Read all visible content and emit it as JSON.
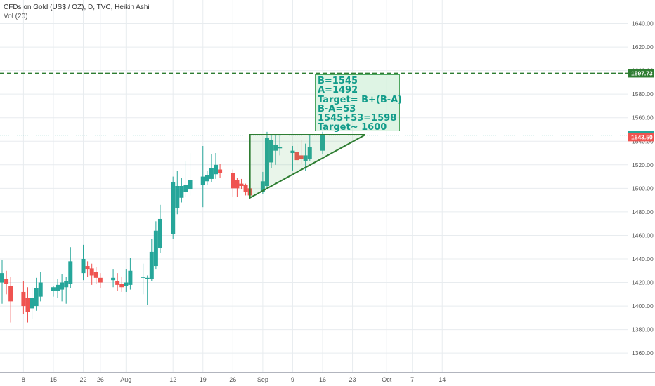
{
  "header": {
    "title": "CFDs on Gold (US$ / OZ), D, TVC, Heikin Ashi",
    "volume_label": "Vol (20)"
  },
  "annotation": {
    "lines": [
      "B=1545",
      "A=1492",
      "Target= B+(B-A)",
      "B-A=53",
      "1545+53=1598",
      "Target~ 1600"
    ]
  },
  "colors": {
    "up": "#26a69a",
    "down": "#ef5350",
    "triangle": "#2e7d32",
    "target_line": "#2e7d32",
    "last_price": "#26a69a",
    "prev_close": "#ef5350",
    "grid": "#e8ecef",
    "axis_text": "#555555"
  },
  "chart_data": {
    "type": "candlestick",
    "chart_style": "Heikin Ashi",
    "series_name": "CFDs on Gold (US$ / OZ)",
    "interval": "D",
    "y_axis": {
      "position": "right",
      "range": [
        1344,
        1660
      ],
      "ticks": [
        1360,
        1380,
        1400,
        1420,
        1440,
        1460,
        1480,
        1500,
        1520,
        1540,
        1560,
        1580,
        1600,
        1620,
        1640
      ]
    },
    "x_axis": {
      "range": [
        "2019-07-03",
        "2019-10-15"
      ],
      "ticks": [
        {
          "label": "8",
          "date": "2019-07-08"
        },
        {
          "label": "15",
          "date": "2019-07-15"
        },
        {
          "label": "22",
          "date": "2019-07-22"
        },
        {
          "label": "26",
          "date": "2019-07-26"
        },
        {
          "label": "Aug",
          "date": "2019-08-01"
        },
        {
          "label": "12",
          "date": "2019-08-12"
        },
        {
          "label": "19",
          "date": "2019-08-19"
        },
        {
          "label": "26",
          "date": "2019-08-26"
        },
        {
          "label": "Sep",
          "date": "2019-09-02"
        },
        {
          "label": "9",
          "date": "2019-09-09"
        },
        {
          "label": "16",
          "date": "2019-09-16"
        },
        {
          "label": "23",
          "date": "2019-09-23"
        },
        {
          "label": "Oct",
          "date": "2019-10-01"
        },
        {
          "label": "7",
          "date": "2019-10-07"
        },
        {
          "label": "14",
          "date": "2019-10-14"
        }
      ]
    },
    "candles": [
      {
        "date": "2019-07-03",
        "open": 1420,
        "high": 1439,
        "low": 1402,
        "close": 1428
      },
      {
        "date": "2019-07-04",
        "open": 1423,
        "high": 1430,
        "low": 1410,
        "close": 1419
      },
      {
        "date": "2019-07-05",
        "open": 1417,
        "high": 1425,
        "low": 1386,
        "close": 1404
      },
      {
        "date": "2019-07-08",
        "open": 1412,
        "high": 1421,
        "low": 1393,
        "close": 1400
      },
      {
        "date": "2019-07-09",
        "open": 1407,
        "high": 1416,
        "low": 1386,
        "close": 1395
      },
      {
        "date": "2019-07-10",
        "open": 1398,
        "high": 1416,
        "low": 1389,
        "close": 1407
      },
      {
        "date": "2019-07-11",
        "open": 1400,
        "high": 1424,
        "low": 1396,
        "close": 1415
      },
      {
        "date": "2019-07-12",
        "open": 1408,
        "high": 1429,
        "low": 1404,
        "close": 1420
      },
      {
        "date": "2019-07-15",
        "open": 1413,
        "high": 1417,
        "low": 1408,
        "close": 1416
      },
      {
        "date": "2019-07-16",
        "open": 1413,
        "high": 1423,
        "low": 1407,
        "close": 1418
      },
      {
        "date": "2019-07-17",
        "open": 1414,
        "high": 1427,
        "low": 1404,
        "close": 1420
      },
      {
        "date": "2019-07-18",
        "open": 1416,
        "high": 1425,
        "low": 1402,
        "close": 1421
      },
      {
        "date": "2019-07-19",
        "open": 1419,
        "high": 1450,
        "low": 1415,
        "close": 1438
      },
      {
        "date": "2019-07-22",
        "open": 1428,
        "high": 1452,
        "low": 1422,
        "close": 1440
      },
      {
        "date": "2019-07-23",
        "open": 1434,
        "high": 1438,
        "low": 1425,
        "close": 1431
      },
      {
        "date": "2019-07-24",
        "open": 1432,
        "high": 1436,
        "low": 1418,
        "close": 1426
      },
      {
        "date": "2019-07-25",
        "open": 1429,
        "high": 1433,
        "low": 1419,
        "close": 1424
      },
      {
        "date": "2019-07-26",
        "open": 1424,
        "high": 1428,
        "low": 1415,
        "close": 1420
      },
      {
        "date": "2019-07-29",
        "open": 1422,
        "high": 1431,
        "low": 1416,
        "close": 1424
      },
      {
        "date": "2019-07-30",
        "open": 1421,
        "high": 1428,
        "low": 1413,
        "close": 1418
      },
      {
        "date": "2019-07-31",
        "open": 1419,
        "high": 1425,
        "low": 1412,
        "close": 1416
      },
      {
        "date": "2019-08-01",
        "open": 1417,
        "high": 1431,
        "low": 1412,
        "close": 1420
      },
      {
        "date": "2019-08-02",
        "open": 1418,
        "high": 1441,
        "low": 1414,
        "close": 1430
      },
      {
        "date": "2019-08-05",
        "open": 1424,
        "high": 1436,
        "low": 1410,
        "close": 1425
      },
      {
        "date": "2019-08-06",
        "open": 1423,
        "high": 1426,
        "low": 1401,
        "close": 1424
      },
      {
        "date": "2019-08-07",
        "open": 1423,
        "high": 1457,
        "low": 1421,
        "close": 1446
      },
      {
        "date": "2019-08-08",
        "open": 1434,
        "high": 1472,
        "low": 1431,
        "close": 1464
      },
      {
        "date": "2019-08-09",
        "open": 1449,
        "high": 1486,
        "low": 1445,
        "close": 1474
      },
      {
        "date": "2019-08-12",
        "open": 1461,
        "high": 1510,
        "low": 1457,
        "close": 1505
      },
      {
        "date": "2019-08-13",
        "open": 1483,
        "high": 1515,
        "low": 1478,
        "close": 1502
      },
      {
        "date": "2019-08-14",
        "open": 1492,
        "high": 1509,
        "low": 1488,
        "close": 1502
      },
      {
        "date": "2019-08-15",
        "open": 1497,
        "high": 1523,
        "low": 1493,
        "close": 1503
      },
      {
        "date": "2019-08-16",
        "open": 1499,
        "high": 1530,
        "low": 1494,
        "close": 1507
      },
      {
        "date": "2019-08-19",
        "open": 1503,
        "high": 1536,
        "low": 1484,
        "close": 1510
      },
      {
        "date": "2019-08-20",
        "open": 1506,
        "high": 1515,
        "low": 1503,
        "close": 1511
      },
      {
        "date": "2019-08-21",
        "open": 1508,
        "high": 1529,
        "low": 1505,
        "close": 1517
      },
      {
        "date": "2019-08-22",
        "open": 1512,
        "high": 1530,
        "low": 1508,
        "close": 1520
      },
      {
        "date": "2019-08-23",
        "open": 1516,
        "high": 1521,
        "low": 1509,
        "close": 1513
      },
      {
        "date": "2019-08-26",
        "open": 1513,
        "high": 1516,
        "low": 1493,
        "close": 1500
      },
      {
        "date": "2019-08-27",
        "open": 1507,
        "high": 1509,
        "low": 1493,
        "close": 1500
      },
      {
        "date": "2019-08-28",
        "open": 1504,
        "high": 1508,
        "low": 1499,
        "close": 1502
      },
      {
        "date": "2019-08-29",
        "open": 1503,
        "high": 1504,
        "low": 1494,
        "close": 1497
      },
      {
        "date": "2019-08-30",
        "open": 1500,
        "high": 1503,
        "low": 1492,
        "close": 1494
      },
      {
        "date": "2019-09-02",
        "open": 1497,
        "high": 1514,
        "low": 1495,
        "close": 1506
      },
      {
        "date": "2019-09-03",
        "open": 1502,
        "high": 1548,
        "low": 1500,
        "close": 1543
      },
      {
        "date": "2019-09-04",
        "open": 1522,
        "high": 1546,
        "low": 1517,
        "close": 1541
      },
      {
        "date": "2019-09-05",
        "open": 1532,
        "high": 1545,
        "low": 1520,
        "close": 1537
      },
      {
        "date": "2019-09-06",
        "open": 1534,
        "high": 1545,
        "low": 1528,
        "close": 1535
      },
      {
        "date": "2019-09-09",
        "open": 1530,
        "high": 1536,
        "low": 1515,
        "close": 1532
      },
      {
        "date": "2019-09-10",
        "open": 1531,
        "high": 1538,
        "low": 1519,
        "close": 1524
      },
      {
        "date": "2019-09-11",
        "open": 1528,
        "high": 1541,
        "low": 1521,
        "close": 1525
      },
      {
        "date": "2019-09-12",
        "open": 1523,
        "high": 1538,
        "low": 1515,
        "close": 1528
      },
      {
        "date": "2019-09-13",
        "open": 1525,
        "high": 1545,
        "low": 1523,
        "close": 1535
      },
      {
        "date": "2019-09-16",
        "open": 1532,
        "high": 1548,
        "low": 1529,
        "close": 1545
      }
    ],
    "horizontal_lines": [
      {
        "price": 1597.73,
        "style": "dashed",
        "label": "1597.73",
        "label_color": "#2e7d32"
      },
      {
        "price": 1545.18,
        "style": "dotted",
        "label": "1545.18",
        "label_color": "#26a69a"
      }
    ],
    "price_labels": [
      {
        "price": 1543.5,
        "label": "1543.50",
        "color": "#ef5350"
      }
    ],
    "drawings": [
      {
        "type": "triangle",
        "points": [
          {
            "date": "2019-08-30",
            "price": 1545.5
          },
          {
            "date": "2019-08-30",
            "price": 1492
          },
          {
            "date": "2019-09-26",
            "price": 1545.5
          }
        ]
      }
    ]
  }
}
